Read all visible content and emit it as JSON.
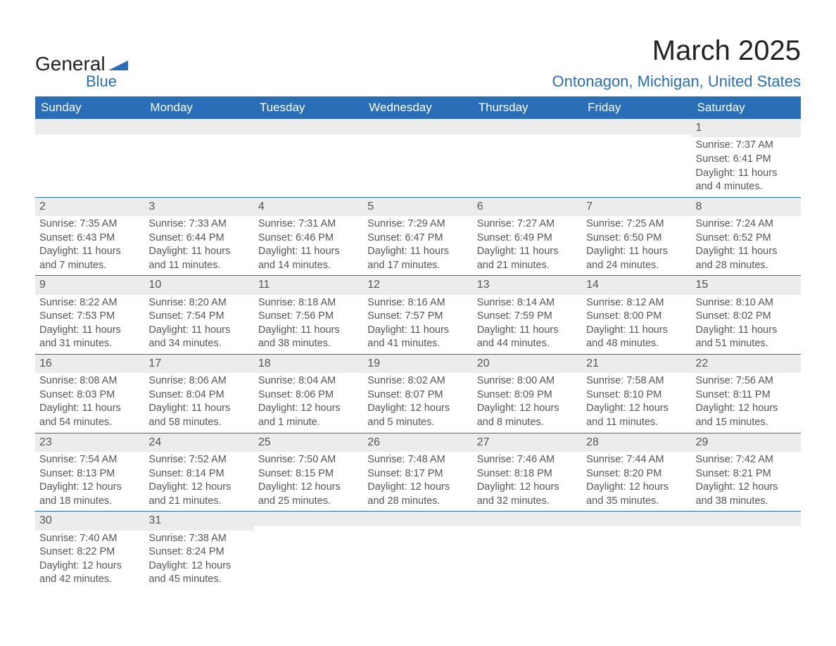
{
  "logo": {
    "text_top": "General",
    "text_bottom": "Blue",
    "mark_color": "#2a6eb8"
  },
  "title": "March 2025",
  "location": "Ontonagon, Michigan, United States",
  "colors": {
    "header_bg": "#2a6eb8",
    "header_text": "#ffffff",
    "day_header_bg": "#ececec",
    "cell_text": "#555555",
    "rule": "#2a6eb8"
  },
  "weekdays": [
    "Sunday",
    "Monday",
    "Tuesday",
    "Wednesday",
    "Thursday",
    "Friday",
    "Saturday"
  ],
  "weeks": [
    [
      null,
      null,
      null,
      null,
      null,
      null,
      {
        "n": "1",
        "sunrise": "Sunrise: 7:37 AM",
        "sunset": "Sunset: 6:41 PM",
        "daylight": "Daylight: 11 hours and 4 minutes."
      }
    ],
    [
      {
        "n": "2",
        "sunrise": "Sunrise: 7:35 AM",
        "sunset": "Sunset: 6:43 PM",
        "daylight": "Daylight: 11 hours and 7 minutes."
      },
      {
        "n": "3",
        "sunrise": "Sunrise: 7:33 AM",
        "sunset": "Sunset: 6:44 PM",
        "daylight": "Daylight: 11 hours and 11 minutes."
      },
      {
        "n": "4",
        "sunrise": "Sunrise: 7:31 AM",
        "sunset": "Sunset: 6:46 PM",
        "daylight": "Daylight: 11 hours and 14 minutes."
      },
      {
        "n": "5",
        "sunrise": "Sunrise: 7:29 AM",
        "sunset": "Sunset: 6:47 PM",
        "daylight": "Daylight: 11 hours and 17 minutes."
      },
      {
        "n": "6",
        "sunrise": "Sunrise: 7:27 AM",
        "sunset": "Sunset: 6:49 PM",
        "daylight": "Daylight: 11 hours and 21 minutes."
      },
      {
        "n": "7",
        "sunrise": "Sunrise: 7:25 AM",
        "sunset": "Sunset: 6:50 PM",
        "daylight": "Daylight: 11 hours and 24 minutes."
      },
      {
        "n": "8",
        "sunrise": "Sunrise: 7:24 AM",
        "sunset": "Sunset: 6:52 PM",
        "daylight": "Daylight: 11 hours and 28 minutes."
      }
    ],
    [
      {
        "n": "9",
        "sunrise": "Sunrise: 8:22 AM",
        "sunset": "Sunset: 7:53 PM",
        "daylight": "Daylight: 11 hours and 31 minutes."
      },
      {
        "n": "10",
        "sunrise": "Sunrise: 8:20 AM",
        "sunset": "Sunset: 7:54 PM",
        "daylight": "Daylight: 11 hours and 34 minutes."
      },
      {
        "n": "11",
        "sunrise": "Sunrise: 8:18 AM",
        "sunset": "Sunset: 7:56 PM",
        "daylight": "Daylight: 11 hours and 38 minutes."
      },
      {
        "n": "12",
        "sunrise": "Sunrise: 8:16 AM",
        "sunset": "Sunset: 7:57 PM",
        "daylight": "Daylight: 11 hours and 41 minutes."
      },
      {
        "n": "13",
        "sunrise": "Sunrise: 8:14 AM",
        "sunset": "Sunset: 7:59 PM",
        "daylight": "Daylight: 11 hours and 44 minutes."
      },
      {
        "n": "14",
        "sunrise": "Sunrise: 8:12 AM",
        "sunset": "Sunset: 8:00 PM",
        "daylight": "Daylight: 11 hours and 48 minutes."
      },
      {
        "n": "15",
        "sunrise": "Sunrise: 8:10 AM",
        "sunset": "Sunset: 8:02 PM",
        "daylight": "Daylight: 11 hours and 51 minutes."
      }
    ],
    [
      {
        "n": "16",
        "sunrise": "Sunrise: 8:08 AM",
        "sunset": "Sunset: 8:03 PM",
        "daylight": "Daylight: 11 hours and 54 minutes."
      },
      {
        "n": "17",
        "sunrise": "Sunrise: 8:06 AM",
        "sunset": "Sunset: 8:04 PM",
        "daylight": "Daylight: 11 hours and 58 minutes."
      },
      {
        "n": "18",
        "sunrise": "Sunrise: 8:04 AM",
        "sunset": "Sunset: 8:06 PM",
        "daylight": "Daylight: 12 hours and 1 minute."
      },
      {
        "n": "19",
        "sunrise": "Sunrise: 8:02 AM",
        "sunset": "Sunset: 8:07 PM",
        "daylight": "Daylight: 12 hours and 5 minutes."
      },
      {
        "n": "20",
        "sunrise": "Sunrise: 8:00 AM",
        "sunset": "Sunset: 8:09 PM",
        "daylight": "Daylight: 12 hours and 8 minutes."
      },
      {
        "n": "21",
        "sunrise": "Sunrise: 7:58 AM",
        "sunset": "Sunset: 8:10 PM",
        "daylight": "Daylight: 12 hours and 11 minutes."
      },
      {
        "n": "22",
        "sunrise": "Sunrise: 7:56 AM",
        "sunset": "Sunset: 8:11 PM",
        "daylight": "Daylight: 12 hours and 15 minutes."
      }
    ],
    [
      {
        "n": "23",
        "sunrise": "Sunrise: 7:54 AM",
        "sunset": "Sunset: 8:13 PM",
        "daylight": "Daylight: 12 hours and 18 minutes."
      },
      {
        "n": "24",
        "sunrise": "Sunrise: 7:52 AM",
        "sunset": "Sunset: 8:14 PM",
        "daylight": "Daylight: 12 hours and 21 minutes."
      },
      {
        "n": "25",
        "sunrise": "Sunrise: 7:50 AM",
        "sunset": "Sunset: 8:15 PM",
        "daylight": "Daylight: 12 hours and 25 minutes."
      },
      {
        "n": "26",
        "sunrise": "Sunrise: 7:48 AM",
        "sunset": "Sunset: 8:17 PM",
        "daylight": "Daylight: 12 hours and 28 minutes."
      },
      {
        "n": "27",
        "sunrise": "Sunrise: 7:46 AM",
        "sunset": "Sunset: 8:18 PM",
        "daylight": "Daylight: 12 hours and 32 minutes."
      },
      {
        "n": "28",
        "sunrise": "Sunrise: 7:44 AM",
        "sunset": "Sunset: 8:20 PM",
        "daylight": "Daylight: 12 hours and 35 minutes."
      },
      {
        "n": "29",
        "sunrise": "Sunrise: 7:42 AM",
        "sunset": "Sunset: 8:21 PM",
        "daylight": "Daylight: 12 hours and 38 minutes."
      }
    ],
    [
      {
        "n": "30",
        "sunrise": "Sunrise: 7:40 AM",
        "sunset": "Sunset: 8:22 PM",
        "daylight": "Daylight: 12 hours and 42 minutes."
      },
      {
        "n": "31",
        "sunrise": "Sunrise: 7:38 AM",
        "sunset": "Sunset: 8:24 PM",
        "daylight": "Daylight: 12 hours and 45 minutes."
      },
      null,
      null,
      null,
      null,
      null
    ]
  ]
}
